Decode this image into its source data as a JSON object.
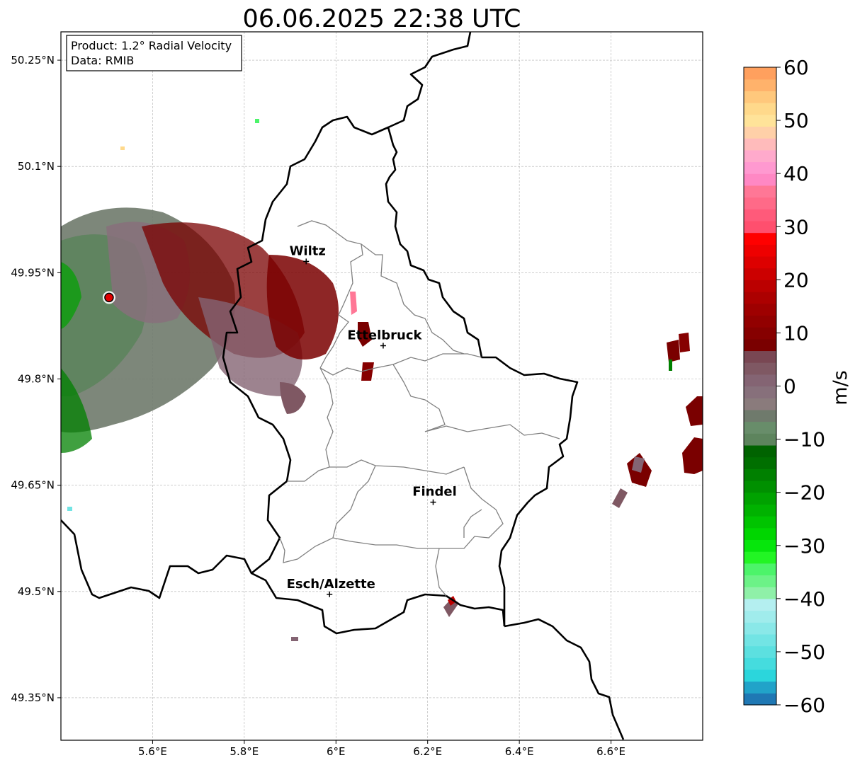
{
  "title": "06.06.2025 22:38 UTC",
  "info_box": {
    "product": "Product: 1.2° Radial Velocity",
    "data": "Data: RMIB"
  },
  "map": {
    "lon_range": [
      5.4,
      6.8
    ],
    "lat_range": [
      49.29,
      50.29
    ],
    "x_ticks": [
      {
        "value": 5.6,
        "label": "5.6°E"
      },
      {
        "value": 5.8,
        "label": "5.8°E"
      },
      {
        "value": 6.0,
        "label": "6°E"
      },
      {
        "value": 6.2,
        "label": "6.2°E"
      },
      {
        "value": 6.4,
        "label": "6.4°E"
      },
      {
        "value": 6.6,
        "label": "6.6°E"
      }
    ],
    "y_ticks": [
      {
        "value": 50.25,
        "label": "50.25°N"
      },
      {
        "value": 50.1,
        "label": "50.1°N"
      },
      {
        "value": 49.95,
        "label": "49.95°N"
      },
      {
        "value": 49.8,
        "label": "49.8°N"
      },
      {
        "value": 49.65,
        "label": "49.65°N"
      },
      {
        "value": 49.5,
        "label": "49.5°N"
      },
      {
        "value": 49.35,
        "label": "49.35°N"
      }
    ],
    "grid": true,
    "radar_site": {
      "lon": 5.505,
      "lat": 49.915
    },
    "cities": [
      {
        "name": "Wiltz",
        "lon": 5.935,
        "lat": 49.966
      },
      {
        "name": "Ettelbruck",
        "lon": 6.103,
        "lat": 49.847
      },
      {
        "name": "Findel",
        "lon": 6.212,
        "lat": 49.626
      },
      {
        "name": "Esch/Alzette",
        "lon": 5.986,
        "lat": 49.496
      }
    ]
  },
  "colorbar": {
    "label": "m/s",
    "range": [
      -60,
      60
    ],
    "ticks": [
      "60",
      "50",
      "40",
      "30",
      "20",
      "10",
      "0",
      "−10",
      "−20",
      "−30",
      "−40",
      "−50",
      "−60"
    ],
    "tick_values": [
      60,
      50,
      40,
      30,
      20,
      10,
      0,
      -10,
      -20,
      -30,
      -40,
      -50,
      -60
    ],
    "colors": [
      "#1f78b4",
      "#21a3c9",
      "#2bd6dc",
      "#45dcde",
      "#5ce0e0",
      "#72e4e4",
      "#8ae8e8",
      "#a0ecec",
      "#b4eff0",
      "#8ff0a8",
      "#6cf287",
      "#4cf46a",
      "#22f524",
      "#06e60c",
      "#00d600",
      "#00c400",
      "#00b200",
      "#00a200",
      "#009000",
      "#008000",
      "#006f00",
      "#006300",
      "#5d845d",
      "#688d6a",
      "#6f7a6c",
      "#8a7b7c",
      "#87707b",
      "#846473",
      "#7f5863",
      "#794753",
      "#7a0000",
      "#860000",
      "#920000",
      "#9e0000",
      "#ac0000",
      "#bb0000",
      "#cc0000",
      "#dd0000",
      "#ee0000",
      "#ff0000",
      "#ff4f6e",
      "#ff5a7a",
      "#ff6a88",
      "#ff7796",
      "#ff88c4",
      "#ff99d0",
      "#ffaacc",
      "#ffbbbb",
      "#ffd0a8",
      "#ffe399",
      "#ffd98b",
      "#ffc87c",
      "#ffb26b",
      "#ffa05e"
    ]
  }
}
